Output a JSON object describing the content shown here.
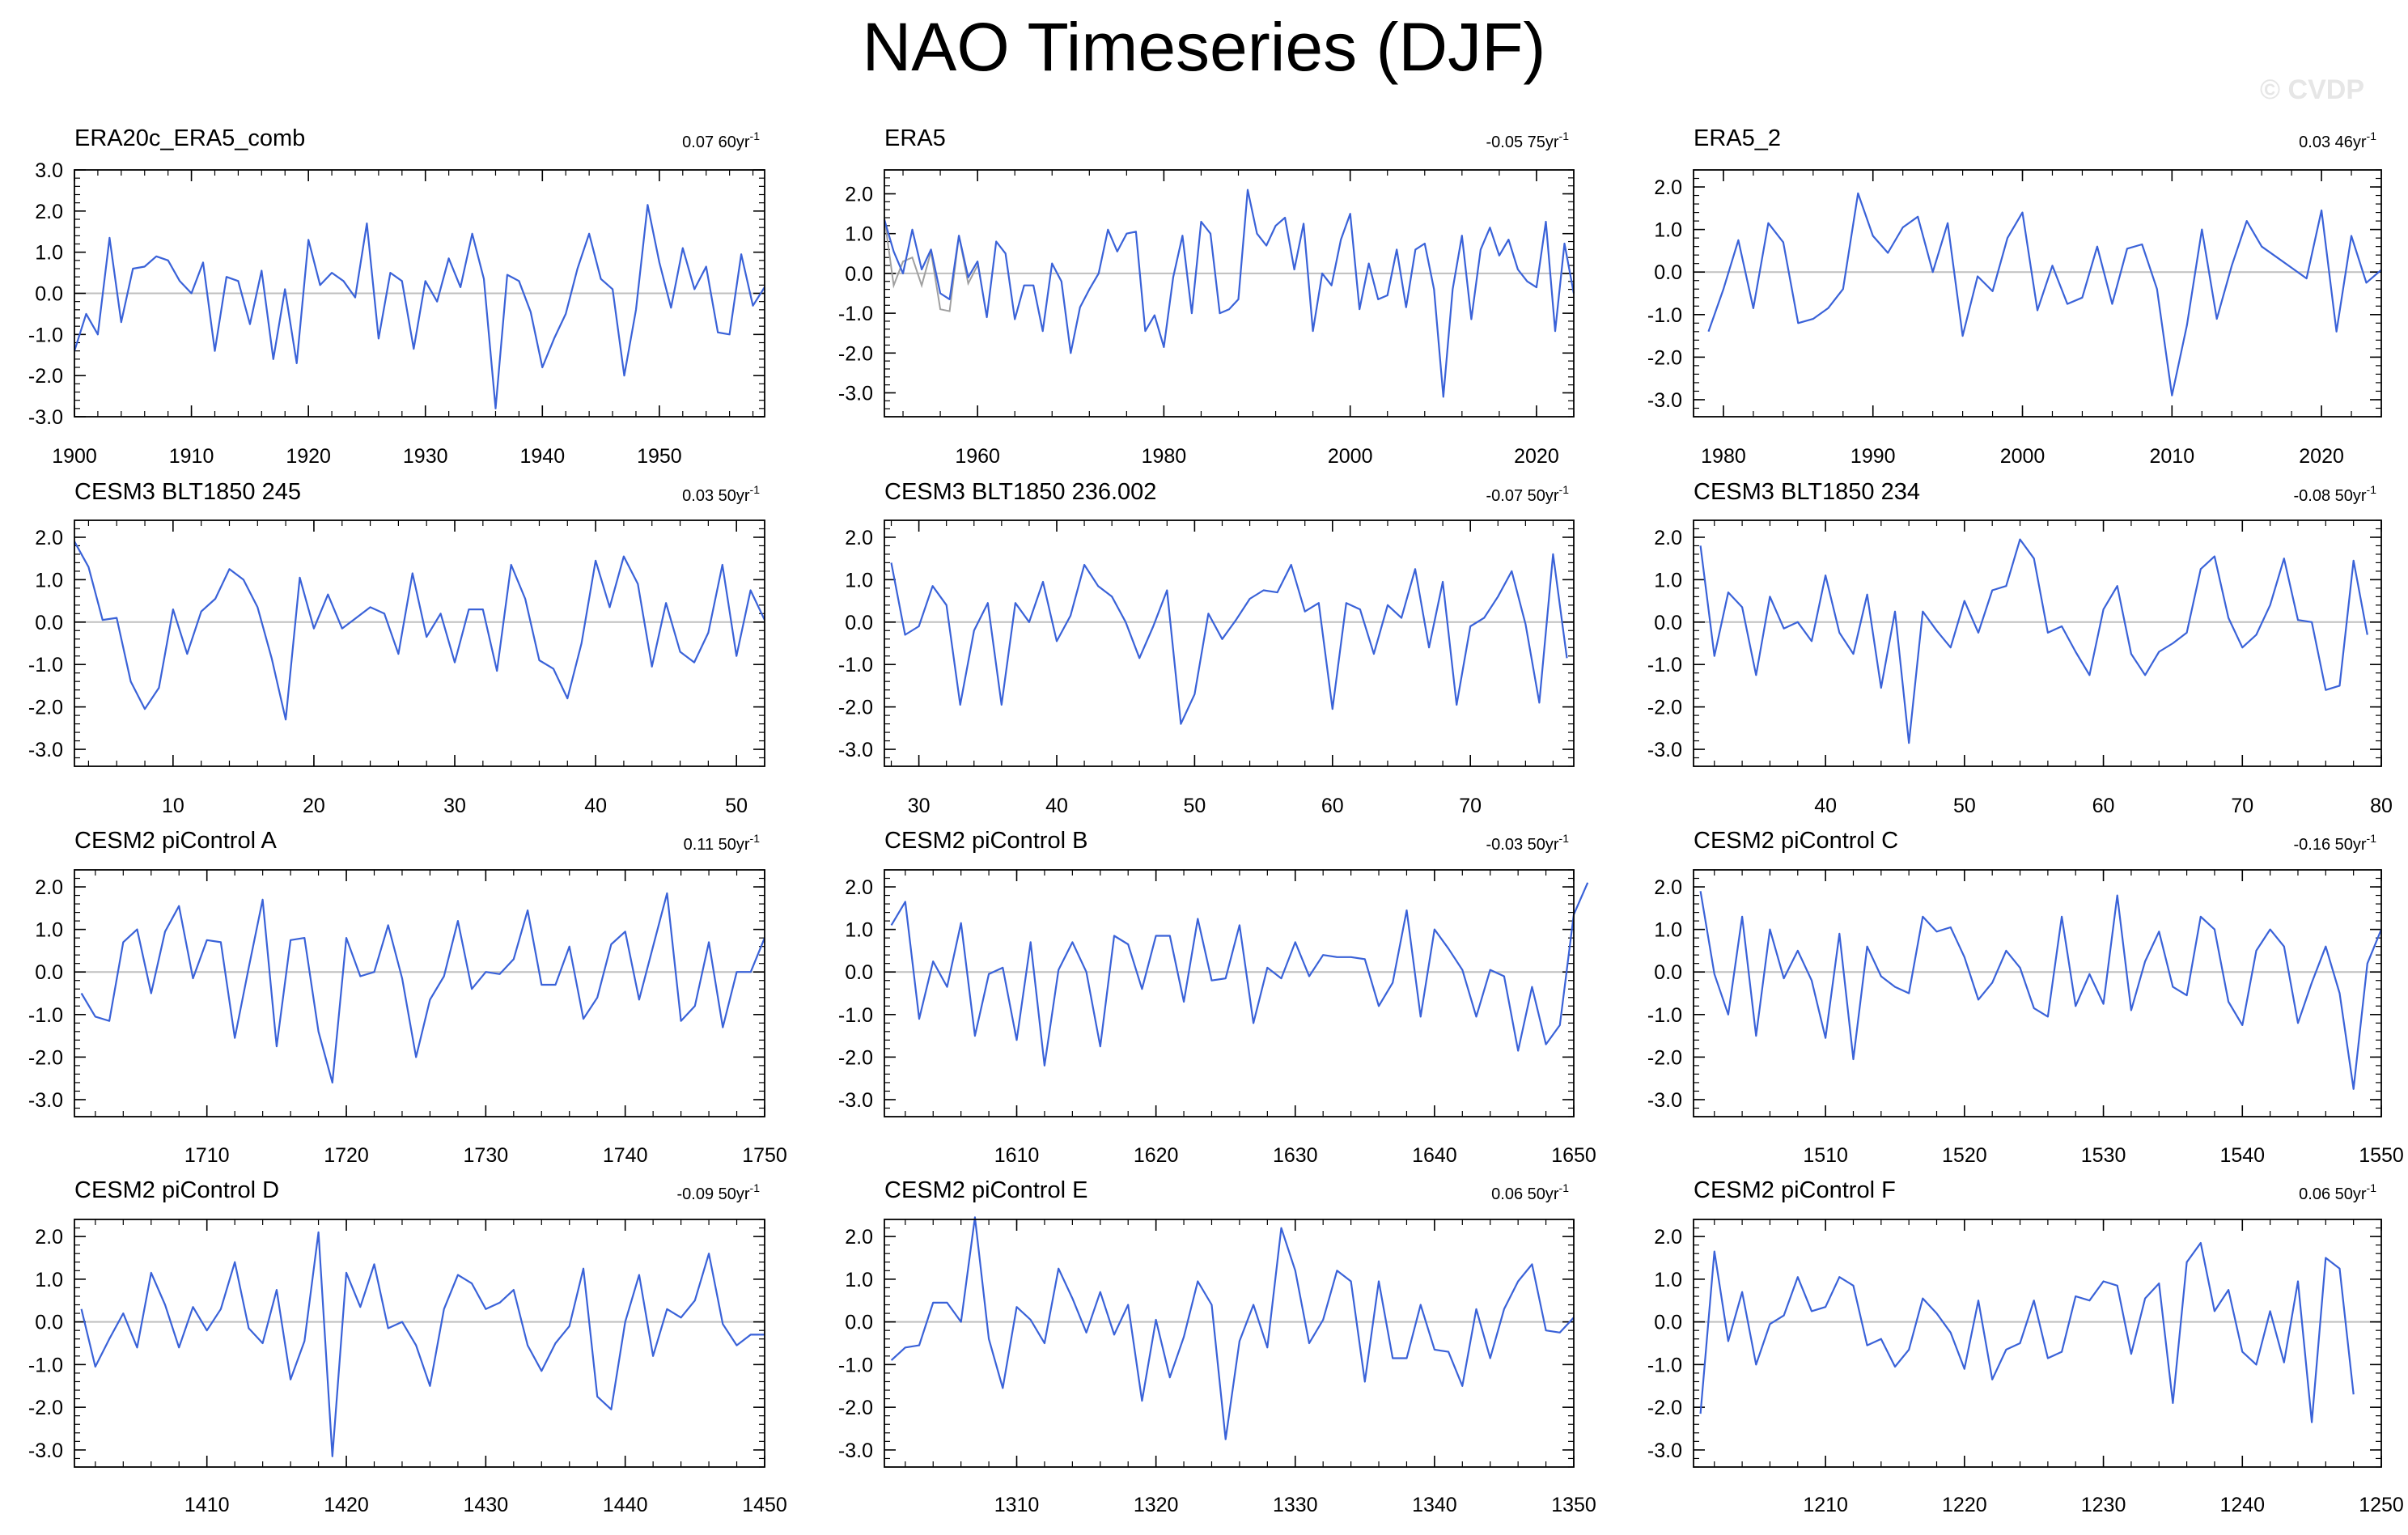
{
  "title": "NAO Timeseries (DJF)",
  "watermark": "© CVDP",
  "colors": {
    "line": "#3a62d8",
    "obs_secondary": "#a0a0a0",
    "zero_line": "#bfbfbf",
    "axis": "#000000"
  },
  "chart_data": [
    {
      "type": "line",
      "title": "ERA20c_ERA5_comb",
      "trend": "0.07 60yr",
      "trend_superscript": "-1",
      "ylim": [
        -3,
        3
      ],
      "yticks": [
        "3.0",
        "2.0",
        "1.0",
        "0.0",
        "-1.0",
        "-2.0",
        "-3.0"
      ],
      "x_start": 1900,
      "xlim": [
        1900,
        1959
      ],
      "xticks": [
        1900,
        1910,
        1920,
        1930,
        1940,
        1950
      ],
      "values": [
        -1.4,
        -0.5,
        -1.0,
        1.35,
        -0.7,
        0.6,
        0.65,
        0.9,
        0.8,
        0.3,
        0.0,
        0.75,
        -1.4,
        0.4,
        0.3,
        -0.75,
        0.55,
        -1.6,
        0.1,
        -1.7,
        1.3,
        0.2,
        0.5,
        0.3,
        -0.1,
        1.7,
        -1.1,
        0.5,
        0.3,
        -1.35,
        0.3,
        -0.2,
        0.85,
        0.15,
        1.45,
        0.35,
        -2.8,
        0.45,
        0.3,
        -0.45,
        -1.8,
        -1.1,
        -0.5,
        0.6,
        1.45,
        0.35,
        0.1,
        -2.0,
        -0.4,
        2.15,
        0.75,
        -0.35,
        1.1,
        0.1,
        0.65,
        -0.95,
        -1.0,
        0.95,
        -0.3,
        0.15
      ]
    },
    {
      "type": "line",
      "title": "ERA5",
      "trend": "-0.05 75yr",
      "trend_superscript": "-1",
      "ylim": [
        -3.6,
        2.6
      ],
      "yticks": [
        "2.0",
        "1.0",
        "0.0",
        "-1.0",
        "-2.0",
        "-3.0"
      ],
      "x_start": 1950,
      "xlim": [
        1950,
        2024
      ],
      "xticks": [
        1960,
        1980,
        2000,
        2020
      ],
      "values": [
        1.35,
        0.55,
        0.0,
        1.1,
        0.1,
        0.6,
        -0.5,
        -0.65,
        0.95,
        -0.1,
        0.3,
        -1.1,
        0.8,
        0.5,
        -1.15,
        -0.3,
        -0.3,
        -1.45,
        0.25,
        -0.2,
        -2.0,
        -0.85,
        -0.4,
        0.0,
        1.1,
        0.55,
        1.0,
        1.05,
        -1.45,
        -1.05,
        -1.85,
        -0.1,
        0.95,
        -1.0,
        1.3,
        1.0,
        -1.0,
        -0.9,
        -0.65,
        2.1,
        1.0,
        0.7,
        1.2,
        1.4,
        0.1,
        1.25,
        -1.45,
        0.0,
        -0.3,
        0.85,
        1.5,
        -0.9,
        0.25,
        -0.65,
        -0.55,
        0.6,
        -0.85,
        0.6,
        0.75,
        -0.4,
        -3.1,
        -0.4,
        0.95,
        -1.15,
        0.6,
        1.15,
        0.45,
        0.85,
        0.1,
        -0.2,
        -0.35,
        1.3,
        -1.45,
        0.75,
        -0.5
      ],
      "secondary_values": [
        1.4,
        -0.3,
        0.3,
        0.4,
        -0.3,
        0.55,
        -0.9,
        -0.95,
        0.95,
        -0.25,
        0.2
      ]
    },
    {
      "type": "line",
      "title": "ERA5_2",
      "trend": "0.03 46yr",
      "trend_superscript": "-1",
      "ylim": [
        -3.4,
        2.4
      ],
      "yticks": [
        "2.0",
        "1.0",
        "0.0",
        "-1.0",
        "-2.0",
        "-3.0"
      ],
      "x_start": 1979,
      "xlim": [
        1978,
        2024
      ],
      "xticks": [
        1980,
        1990,
        2000,
        2010,
        2020
      ],
      "values": [
        -1.4,
        -0.4,
        0.75,
        -0.85,
        1.15,
        0.7,
        -1.2,
        -1.1,
        -0.85,
        -0.4,
        1.85,
        0.85,
        0.45,
        1.05,
        1.3,
        0.0,
        1.15,
        -1.5,
        -0.1,
        -0.45,
        0.8,
        1.4,
        -0.9,
        0.15,
        -0.75,
        -0.6,
        0.6,
        -0.75,
        0.55,
        0.65,
        -0.4,
        -2.9,
        -1.25,
        1.0,
        -1.1,
        0.15,
        1.2,
        0.6,
        0.35,
        0.1,
        -0.15,
        1.45,
        -1.4,
        0.85,
        -0.25,
        0.05
      ]
    },
    {
      "type": "line",
      "title": "CESM3 BLT1850 245",
      "trend": "0.03 50yr",
      "trend_superscript": "-1",
      "ylim": [
        -3.4,
        2.4
      ],
      "yticks": [
        "2.0",
        "1.0",
        "0.0",
        "-1.0",
        "-2.0",
        "-3.0"
      ],
      "x_start": 3,
      "xlim": [
        3,
        52
      ],
      "xticks": [
        10,
        20,
        30,
        40,
        50
      ],
      "values": [
        1.9,
        1.3,
        0.05,
        0.1,
        -1.4,
        -2.05,
        -1.55,
        0.3,
        -0.75,
        0.25,
        0.55,
        1.25,
        1.0,
        0.35,
        -0.85,
        -2.3,
        1.05,
        -0.15,
        0.65,
        -0.15,
        0.1,
        0.35,
        0.2,
        -0.75,
        1.15,
        -0.35,
        0.2,
        -0.95,
        0.3,
        0.3,
        -1.15,
        1.35,
        0.55,
        -0.9,
        -1.1,
        -1.8,
        -0.5,
        1.45,
        0.35,
        1.55,
        0.9,
        -1.05,
        0.45,
        -0.7,
        -0.95,
        -0.25,
        1.35,
        -0.8,
        0.75,
        0.05
      ]
    },
    {
      "type": "line",
      "title": "CESM3 BLT1850 236.002",
      "trend": "-0.07 50yr",
      "trend_superscript": "-1",
      "ylim": [
        -3.4,
        2.4
      ],
      "yticks": [
        "2.0",
        "1.0",
        "0.0",
        "-1.0",
        "-2.0",
        "-3.0"
      ],
      "x_start": 28,
      "xlim": [
        27.5,
        77.5
      ],
      "xticks": [
        30,
        40,
        50,
        60,
        70
      ],
      "values": [
        1.4,
        -0.3,
        -0.1,
        0.85,
        0.4,
        -1.95,
        -0.2,
        0.45,
        -1.95,
        0.45,
        0.0,
        0.95,
        -0.45,
        0.15,
        1.35,
        0.85,
        0.6,
        0.0,
        -0.85,
        -0.1,
        0.75,
        -2.4,
        -1.7,
        0.2,
        -0.4,
        0.05,
        0.55,
        0.75,
        0.7,
        1.35,
        0.25,
        0.45,
        -2.05,
        0.45,
        0.3,
        -0.75,
        0.4,
        0.1,
        1.25,
        -0.6,
        0.95,
        -1.95,
        -0.1,
        0.1,
        0.6,
        1.2,
        -0.05,
        -1.9,
        1.6,
        -0.85
      ]
    },
    {
      "type": "line",
      "title": "CESM3 BLT1850 234",
      "trend": "-0.08 50yr",
      "trend_superscript": "-1",
      "ylim": [
        -3.4,
        2.4
      ],
      "yticks": [
        "2.0",
        "1.0",
        "0.0",
        "-1.0",
        "-2.0",
        "-3.0"
      ],
      "x_start": 31,
      "xlim": [
        30.5,
        80
      ],
      "xticks": [
        40,
        50,
        60,
        70,
        80
      ],
      "values": [
        1.8,
        -0.8,
        0.7,
        0.35,
        -1.25,
        0.6,
        -0.15,
        0.0,
        -0.45,
        1.1,
        -0.25,
        -0.75,
        0.65,
        -1.55,
        0.25,
        -2.85,
        0.25,
        -0.2,
        -0.6,
        0.5,
        -0.25,
        0.75,
        0.85,
        1.95,
        1.5,
        -0.25,
        -0.1,
        -0.7,
        -1.25,
        0.3,
        0.85,
        -0.75,
        -1.25,
        -0.7,
        -0.5,
        -0.25,
        1.25,
        1.55,
        0.1,
        -0.6,
        -0.3,
        0.4,
        1.5,
        0.05,
        0.0,
        -1.6,
        -1.5,
        1.45,
        -0.3
      ]
    },
    {
      "type": "line",
      "title": "CESM2 piControl A",
      "trend": "0.11 50yr",
      "trend_superscript": "-1",
      "ylim": [
        -3.4,
        2.4
      ],
      "yticks": [
        "2.0",
        "1.0",
        "0.0",
        "-1.0",
        "-2.0",
        "-3.0"
      ],
      "x_start": 1701,
      "xlim": [
        1700.5,
        1750
      ],
      "xticks": [
        1710,
        1720,
        1730,
        1740,
        1750
      ],
      "values": [
        -0.5,
        -1.05,
        -1.15,
        0.7,
        1.0,
        -0.5,
        0.95,
        1.55,
        -0.15,
        0.75,
        0.7,
        -1.55,
        0.1,
        1.7,
        -1.75,
        0.75,
        0.8,
        -1.4,
        -2.6,
        0.8,
        -0.1,
        0.0,
        1.1,
        -0.15,
        -2.0,
        -0.65,
        -0.1,
        1.2,
        -0.4,
        0.0,
        -0.05,
        0.3,
        1.45,
        -0.3,
        -0.3,
        0.6,
        -1.1,
        -0.6,
        0.65,
        0.95,
        -0.65,
        0.6,
        1.85,
        -1.15,
        -0.8,
        0.7,
        -1.3,
        0.0,
        0.0,
        0.8
      ]
    },
    {
      "type": "line",
      "title": "CESM2 piControl B",
      "trend": "-0.03 50yr",
      "trend_superscript": "-1",
      "ylim": [
        -3.4,
        2.4
      ],
      "yticks": [
        "2.0",
        "1.0",
        "0.0",
        "-1.0",
        "-2.0",
        "-3.0"
      ],
      "x_start": 1601,
      "xlim": [
        1600.5,
        1650
      ],
      "xticks": [
        1610,
        1620,
        1630,
        1640,
        1650
      ],
      "values": [
        1.1,
        1.65,
        -1.1,
        0.25,
        -0.35,
        1.15,
        -1.5,
        -0.05,
        0.1,
        -1.6,
        0.7,
        -2.2,
        0.05,
        0.7,
        0.0,
        -1.75,
        0.85,
        0.65,
        -0.4,
        0.85,
        0.85,
        -0.7,
        1.25,
        -0.2,
        -0.15,
        1.1,
        -1.2,
        0.1,
        -0.15,
        0.7,
        -0.1,
        0.4,
        0.35,
        0.35,
        0.3,
        -0.8,
        -0.25,
        1.45,
        -1.05,
        1.0,
        0.55,
        0.05,
        -1.05,
        0.05,
        -0.1,
        -1.85,
        -0.35,
        -1.7,
        -1.25,
        1.35,
        2.1
      ]
    },
    {
      "type": "line",
      "title": "CESM2 piControl C",
      "trend": "-0.16 50yr",
      "trend_superscript": "-1",
      "ylim": [
        -3.4,
        2.4
      ],
      "yticks": [
        "2.0",
        "1.0",
        "0.0",
        "-1.0",
        "-2.0",
        "-3.0"
      ],
      "x_start": 1501,
      "xlim": [
        1500.5,
        1550
      ],
      "xticks": [
        1510,
        1520,
        1530,
        1540,
        1550
      ],
      "values": [
        1.9,
        -0.05,
        -1.0,
        1.3,
        -1.5,
        1.0,
        -0.15,
        0.5,
        -0.2,
        -1.55,
        0.9,
        -2.05,
        0.6,
        -0.1,
        -0.35,
        -0.5,
        1.3,
        0.95,
        1.05,
        0.35,
        -0.65,
        -0.25,
        0.5,
        0.1,
        -0.85,
        -1.05,
        1.3,
        -0.8,
        -0.05,
        -0.75,
        1.8,
        -0.9,
        0.25,
        0.95,
        -0.35,
        -0.55,
        1.3,
        1.0,
        -0.7,
        -1.25,
        0.5,
        1.0,
        0.6,
        -1.2,
        -0.25,
        0.6,
        -0.5,
        -2.75,
        0.2,
        1.0
      ]
    },
    {
      "type": "line",
      "title": "CESM2 piControl D",
      "trend": "-0.09 50yr",
      "trend_superscript": "-1",
      "ylim": [
        -3.4,
        2.4
      ],
      "yticks": [
        "2.0",
        "1.0",
        "0.0",
        "-1.0",
        "-2.0",
        "-3.0"
      ],
      "x_start": 1401,
      "xlim": [
        1400.5,
        1450
      ],
      "xticks": [
        1410,
        1420,
        1430,
        1440,
        1450
      ],
      "values": [
        0.3,
        -1.05,
        -0.4,
        0.2,
        -0.6,
        1.15,
        0.4,
        -0.6,
        0.35,
        -0.2,
        0.3,
        1.4,
        -0.15,
        -0.5,
        0.75,
        -1.35,
        -0.45,
        2.1,
        -3.15,
        1.15,
        0.35,
        1.35,
        -0.15,
        0.0,
        -0.55,
        -1.5,
        0.3,
        1.1,
        0.9,
        0.3,
        0.45,
        0.75,
        -0.55,
        -1.15,
        -0.5,
        -0.1,
        1.25,
        -1.75,
        -2.05,
        0.0,
        1.1,
        -0.8,
        0.3,
        0.1,
        0.5,
        1.6,
        -0.05,
        -0.55,
        -0.3,
        -0.3
      ]
    },
    {
      "type": "line",
      "title": "CESM2 piControl E",
      "trend": "0.06 50yr",
      "trend_superscript": "-1",
      "ylim": [
        -3.4,
        2.4
      ],
      "yticks": [
        "2.0",
        "1.0",
        "0.0",
        "-1.0",
        "-2.0",
        "-3.0"
      ],
      "x_start": 1301,
      "xlim": [
        1300.5,
        1350
      ],
      "xticks": [
        1310,
        1320,
        1330,
        1340,
        1350
      ],
      "values": [
        -0.9,
        -0.6,
        -0.55,
        0.45,
        0.45,
        0.0,
        2.45,
        -0.4,
        -1.55,
        0.35,
        0.05,
        -0.5,
        1.25,
        0.55,
        -0.25,
        0.7,
        -0.3,
        0.4,
        -1.85,
        0.05,
        -1.3,
        -0.35,
        0.95,
        0.4,
        -2.75,
        -0.45,
        0.4,
        -0.6,
        2.2,
        1.2,
        -0.5,
        0.05,
        1.2,
        0.95,
        -1.4,
        0.95,
        -0.85,
        -0.85,
        0.4,
        -0.65,
        -0.7,
        -1.5,
        0.3,
        -0.85,
        0.3,
        0.95,
        1.35,
        -0.2,
        -0.25,
        0.1
      ]
    },
    {
      "type": "line",
      "title": "CESM2 piControl F",
      "trend": "0.06 50yr",
      "trend_superscript": "-1",
      "ylim": [
        -3.4,
        2.4
      ],
      "yticks": [
        "2.0",
        "1.0",
        "0.0",
        "-1.0",
        "-2.0",
        "-3.0"
      ],
      "x_start": 1201,
      "xlim": [
        1200.5,
        1250
      ],
      "xticks": [
        1210,
        1220,
        1230,
        1240,
        1250
      ],
      "values": [
        -2.15,
        1.65,
        -0.45,
        0.7,
        -1.0,
        -0.05,
        0.15,
        1.05,
        0.25,
        0.35,
        1.05,
        0.85,
        -0.55,
        -0.4,
        -1.05,
        -0.65,
        0.55,
        0.2,
        -0.25,
        -1.1,
        0.5,
        -1.35,
        -0.65,
        -0.5,
        0.5,
        -0.85,
        -0.7,
        0.6,
        0.5,
        0.95,
        0.85,
        -0.75,
        0.55,
        0.9,
        -1.9,
        1.4,
        1.85,
        0.25,
        0.75,
        -0.7,
        -1.0,
        0.25,
        -0.95,
        0.95,
        -2.35,
        1.5,
        1.25,
        -1.7
      ]
    }
  ]
}
